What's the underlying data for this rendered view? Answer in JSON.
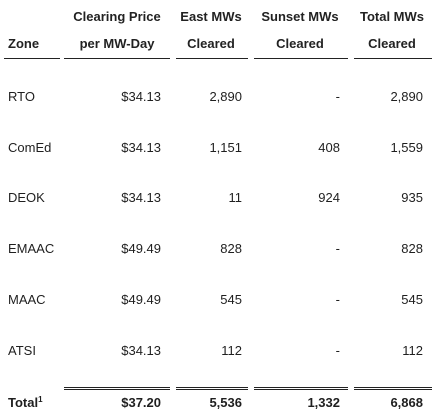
{
  "headers": {
    "zone": "Zone",
    "clearing_price_line1": "Clearing Price",
    "clearing_price_line2": "per MW-Day",
    "east_line1": "East MWs",
    "east_line2": "Cleared",
    "sunset_line1": "Sunset MWs",
    "sunset_line2": "Cleared",
    "total_line1": "Total MWs",
    "total_line2": "Cleared"
  },
  "rows": [
    {
      "zone": "RTO",
      "price": "$34.13",
      "east": "2,890",
      "sunset": "-",
      "total": "2,890"
    },
    {
      "zone": "ComEd",
      "price": "$34.13",
      "east": "1,151",
      "sunset": "408",
      "total": "1,559"
    },
    {
      "zone": "DEOK",
      "price": "$34.13",
      "east": "11",
      "sunset": "924",
      "total": "935"
    },
    {
      "zone": "EMAAC",
      "price": "$49.49",
      "east": "828",
      "sunset": "-",
      "total": "828"
    },
    {
      "zone": "MAAC",
      "price": "$49.49",
      "east": "545",
      "sunset": "-",
      "total": "545"
    },
    {
      "zone": "ATSI",
      "price": "$34.13",
      "east": "112",
      "sunset": "-",
      "total": "112"
    }
  ],
  "total": {
    "label": "Total",
    "footnote": "1",
    "price": "$37.20",
    "east": "5,536",
    "sunset": "1,332",
    "total": "6,868"
  }
}
